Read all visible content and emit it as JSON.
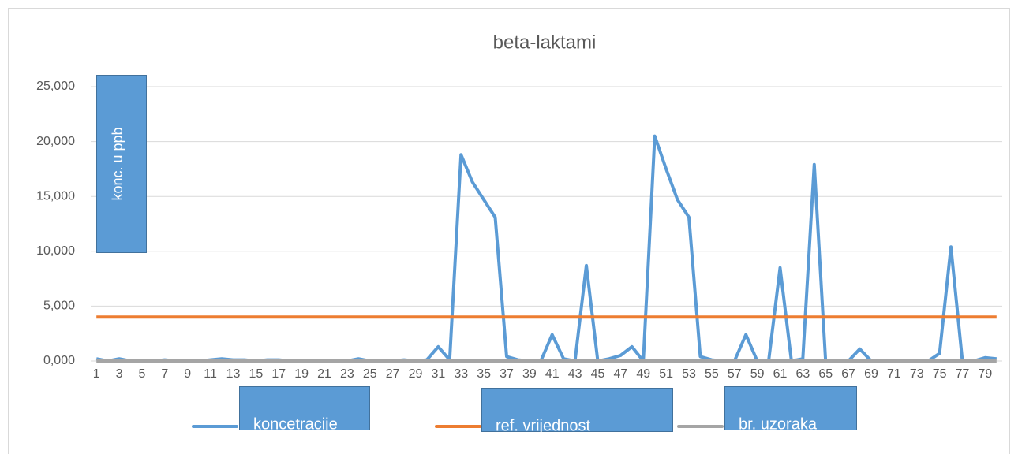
{
  "chart_data": {
    "type": "line",
    "title": "beta-laktami",
    "ylabel": "konc. u ppb",
    "categories": [
      1,
      null,
      3,
      null,
      5,
      null,
      7,
      null,
      9,
      null,
      11,
      null,
      13,
      null,
      15,
      null,
      17,
      null,
      19,
      null,
      21,
      null,
      23,
      null,
      25,
      null,
      27,
      null,
      29,
      null,
      31,
      null,
      33,
      null,
      35,
      null,
      37,
      null,
      39,
      null,
      41,
      null,
      43,
      null,
      45,
      null,
      47,
      null,
      49,
      null,
      51,
      null,
      53,
      null,
      55,
      null,
      57,
      null,
      59,
      null,
      61,
      null,
      63,
      null,
      65,
      null,
      67,
      null,
      69,
      null,
      71,
      null,
      73,
      null,
      75,
      null,
      77,
      null,
      79,
      null
    ],
    "series": [
      {
        "name": "koncetracije",
        "color": "#5b9bd5",
        "values": [
          0.2,
          0,
          0.2,
          0,
          0,
          0,
          0.1,
          0,
          0,
          0,
          0.1,
          0.2,
          0.1,
          0.1,
          0,
          0.1,
          0.1,
          0,
          0,
          0,
          0,
          0,
          0,
          0.2,
          0,
          0,
          0,
          0.1,
          0,
          0.1,
          1.3,
          0.1,
          18.8,
          16.3,
          14.7,
          13.1,
          0.4,
          0.1,
          0,
          0,
          2.4,
          0.2,
          0,
          8.7,
          0,
          0.2,
          0.5,
          1.3,
          0,
          20.5,
          17.5,
          14.7,
          13.1,
          0.4,
          0.1,
          0,
          0,
          2.4,
          0,
          0,
          8.5,
          0,
          0.2,
          17.9,
          0,
          0,
          0,
          1.1,
          0,
          0,
          0,
          0,
          0,
          0,
          0.7,
          10.4,
          0,
          0,
          0.3,
          0.2
        ]
      },
      {
        "name": "ref. vrijednost",
        "color": "#ed7d31",
        "values": [
          4,
          4,
          4,
          4,
          4,
          4,
          4,
          4,
          4,
          4,
          4,
          4,
          4,
          4,
          4,
          4,
          4,
          4,
          4,
          4,
          4,
          4,
          4,
          4,
          4,
          4,
          4,
          4,
          4,
          4,
          4,
          4,
          4,
          4,
          4,
          4,
          4,
          4,
          4,
          4,
          4,
          4,
          4,
          4,
          4,
          4,
          4,
          4,
          4,
          4,
          4,
          4,
          4,
          4,
          4,
          4,
          4,
          4,
          4,
          4,
          4,
          4,
          4,
          4,
          4,
          4,
          4,
          4,
          4,
          4,
          4,
          4,
          4,
          4,
          4,
          4,
          4,
          4,
          4,
          4
        ]
      },
      {
        "name": "br. uzoraka",
        "color": "#a5a5a5",
        "values": [
          0,
          0,
          0,
          0,
          0,
          0,
          0,
          0,
          0,
          0,
          0,
          0,
          0,
          0,
          0,
          0,
          0,
          0,
          0,
          0,
          0,
          0,
          0,
          0,
          0,
          0,
          0,
          0,
          0,
          0,
          0,
          0,
          0,
          0,
          0,
          0,
          0,
          0,
          0,
          0,
          0,
          0,
          0,
          0,
          0,
          0,
          0,
          0,
          0,
          0,
          0,
          0,
          0,
          0,
          0,
          0,
          0,
          0,
          0,
          0,
          0,
          0,
          0,
          0,
          0,
          0,
          0,
          0,
          0,
          0,
          0,
          0,
          0,
          0,
          0,
          0,
          0,
          0,
          0,
          0
        ]
      }
    ],
    "ylim": [
      0,
      25
    ],
    "yticks": [
      {
        "value": 0,
        "label": "0,000"
      },
      {
        "value": 5,
        "label": "5,000"
      },
      {
        "value": 10,
        "label": "10,000"
      },
      {
        "value": 15,
        "label": "15,000"
      },
      {
        "value": 20,
        "label": "20,000"
      },
      {
        "value": 25,
        "label": "25,000"
      }
    ],
    "grid": true
  }
}
